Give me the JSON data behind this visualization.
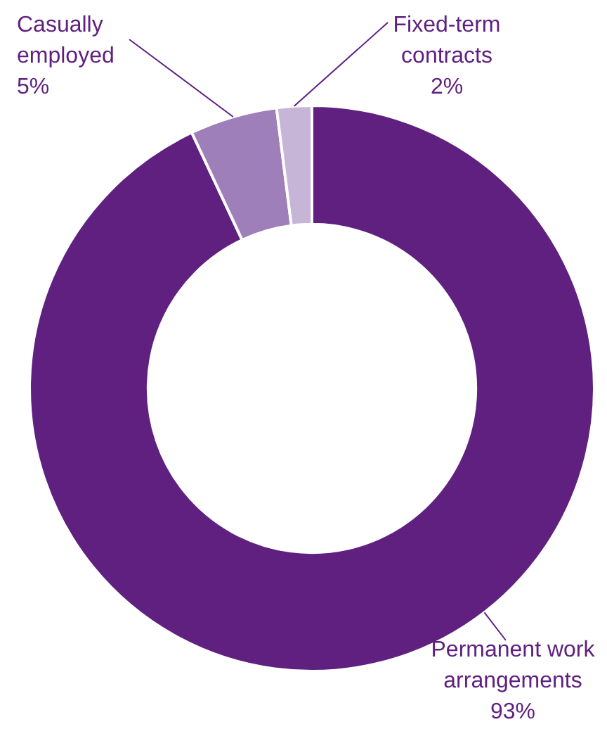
{
  "chart_data": {
    "type": "donut",
    "categories": [
      "Permanent work arrangements",
      "Casually employed",
      "Fixed-term contracts"
    ],
    "values": [
      93,
      5,
      2
    ],
    "colors": [
      "#5f2080",
      "#9f7fb9",
      "#c7b5d8"
    ],
    "value_labels": [
      "93%",
      "5%",
      "2%"
    ],
    "legend": false
  }
}
